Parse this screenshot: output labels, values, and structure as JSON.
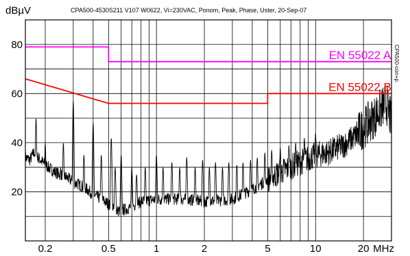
{
  "chart_data": {
    "type": "line",
    "title": "CPA500-4530S211  V107  W0622, Vi=230VAC, Ponom, Peak, Phase, Uster, 20-Sep-07",
    "ylabel": "dBµV",
    "xlabel": "MHz",
    "side_label": "CPA500-con+p",
    "x_scale": "log",
    "xlim": [
      0.15,
      30
    ],
    "ylim": [
      0,
      90
    ],
    "grid": true,
    "x_ticks": [
      {
        "value": 0.2,
        "label": "0.2"
      },
      {
        "value": 0.5,
        "label": "0.5"
      },
      {
        "value": 1,
        "label": "1"
      },
      {
        "value": 2,
        "label": "2"
      },
      {
        "value": 5,
        "label": "5"
      },
      {
        "value": 10,
        "label": "10"
      },
      {
        "value": 20,
        "label": "20"
      }
    ],
    "y_ticks": [
      {
        "value": 20,
        "label": "20"
      },
      {
        "value": 40,
        "label": "40"
      },
      {
        "value": 60,
        "label": "60"
      },
      {
        "value": 80,
        "label": "80"
      }
    ],
    "limits": [
      {
        "name": "EN 55022 A",
        "color": "#ff00ff",
        "points": [
          [
            0.15,
            79
          ],
          [
            0.5,
            79
          ],
          [
            0.5,
            73
          ],
          [
            30,
            73
          ]
        ]
      },
      {
        "name": "EN 55022 B",
        "color": "#ff0000",
        "points": [
          [
            0.15,
            66
          ],
          [
            0.5,
            56
          ],
          [
            5,
            56
          ],
          [
            5,
            60
          ],
          [
            30,
            60
          ]
        ]
      }
    ],
    "measurement": {
      "color": "#000000",
      "base": [
        [
          0.15,
          34
        ],
        [
          0.16,
          33
        ],
        [
          0.17,
          36
        ],
        [
          0.18,
          34
        ],
        [
          0.2,
          31
        ],
        [
          0.23,
          28
        ],
        [
          0.27,
          26
        ],
        [
          0.3,
          24
        ],
        [
          0.35,
          22
        ],
        [
          0.4,
          19
        ],
        [
          0.45,
          17
        ],
        [
          0.5,
          15
        ],
        [
          0.55,
          12
        ],
        [
          0.65,
          13
        ],
        [
          0.8,
          16
        ],
        [
          1,
          17
        ],
        [
          1.5,
          17
        ],
        [
          2,
          16
        ],
        [
          3,
          17
        ],
        [
          4,
          21
        ],
        [
          5,
          25
        ],
        [
          6,
          28
        ],
        [
          8,
          32
        ],
        [
          10,
          35
        ],
        [
          12,
          36
        ],
        [
          15,
          39
        ],
        [
          18,
          43
        ],
        [
          20,
          46
        ],
        [
          23,
          50
        ],
        [
          26,
          54
        ],
        [
          28,
          56
        ],
        [
          30,
          48
        ]
      ],
      "peaks": [
        [
          0.175,
          50
        ],
        [
          0.2,
          40
        ],
        [
          0.25,
          30
        ],
        [
          0.26,
          40
        ],
        [
          0.3,
          57
        ],
        [
          0.35,
          35
        ],
        [
          0.4,
          48
        ],
        [
          0.45,
          35
        ],
        [
          0.52,
          42
        ],
        [
          0.55,
          30
        ],
        [
          0.6,
          35
        ],
        [
          0.7,
          30
        ],
        [
          0.75,
          27
        ],
        [
          0.85,
          30
        ],
        [
          1.0,
          35
        ],
        [
          1.1,
          30
        ],
        [
          1.25,
          32
        ],
        [
          1.4,
          30
        ],
        [
          1.55,
          34
        ],
        [
          1.75,
          30
        ],
        [
          1.95,
          33
        ],
        [
          2.15,
          30
        ],
        [
          2.35,
          32
        ],
        [
          2.6,
          30
        ],
        [
          2.85,
          32
        ],
        [
          3.2,
          31
        ],
        [
          3.5,
          32
        ],
        [
          3.9,
          33
        ],
        [
          4.3,
          34
        ],
        [
          4.8,
          36
        ],
        [
          5.3,
          37
        ],
        [
          6,
          38
        ],
        [
          6.8,
          39
        ],
        [
          7.5,
          40
        ],
        [
          8.5,
          42
        ],
        [
          10,
          44
        ]
      ],
      "noise_amplitude": 2.5
    }
  }
}
